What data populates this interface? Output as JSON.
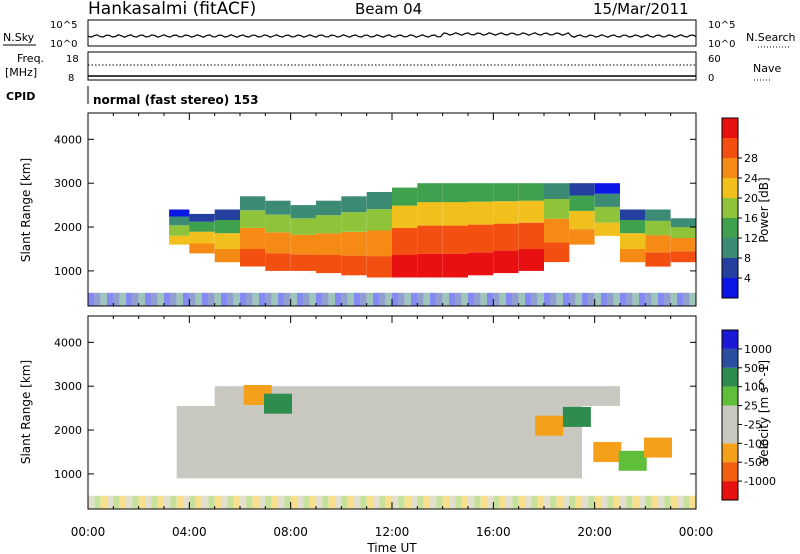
{
  "header": {
    "station": "Hankasalmi (fitACF)",
    "beam": "Beam 04",
    "date": "15/Mar/2011"
  },
  "top_panels": {
    "nsky_label": "N.Sky",
    "nsky_ticks": [
      "10^5",
      "10^0"
    ],
    "nsky_ticks_right": [
      "10^5",
      "10^0"
    ],
    "nsearch_label": "N.Search",
    "freq_label_line1": "Freq.",
    "freq_label_line2": "[MHz]",
    "freq_ticks": [
      "18",
      "8"
    ],
    "nave_ticks": [
      "60",
      "0"
    ],
    "nave_label": "Nave",
    "cpid_label": "CPID",
    "cpid_text": "normal (fast stereo) 153"
  },
  "colors": {
    "power_scale": [
      "#0a16e6",
      "#24409e",
      "#3c8b74",
      "#3fa04e",
      "#8fc43a",
      "#f2c01c",
      "#f58a15",
      "#f24f10",
      "#e81010"
    ],
    "velocity_scale": [
      "#e81010",
      "#f25e10",
      "#f5a01a",
      "#c8c8c0",
      "#c8c8c0",
      "#5fbf3a",
      "#2e8c4f",
      "#2a4f9e",
      "#1a1ad6"
    ],
    "ground_scatter": "#c8c8c0"
  },
  "chart_data": [
    {
      "type": "heatmap",
      "title": "Power",
      "xlabel": "Time UT",
      "ylabel": "Slant Range [km]",
      "x_ticks": [
        "00:00",
        "04:00",
        "08:00",
        "12:00",
        "16:00",
        "20:00",
        "00:00"
      ],
      "y_ticks": [
        "1000",
        "2000",
        "3000",
        "4000"
      ],
      "ylim": [
        200,
        4600
      ],
      "x_range_hours": [
        0,
        24
      ],
      "colorbar_label": "Power [dB]",
      "colorbar_ticks": [
        "4",
        "8",
        "12",
        "16",
        "20",
        "24",
        "28"
      ],
      "regions": [
        {
          "t": 3.2,
          "r0": 1600,
          "r1": 2400,
          "level": 5
        },
        {
          "t": 4.0,
          "r0": 1400,
          "r1": 2300,
          "level": 6
        },
        {
          "t": 5.0,
          "r0": 1200,
          "r1": 2400,
          "level": 6
        },
        {
          "t": 6.0,
          "r0": 1100,
          "r1": 2700,
          "level": 7
        },
        {
          "t": 7.0,
          "r0": 1000,
          "r1": 2600,
          "level": 7
        },
        {
          "t": 8.0,
          "r0": 1000,
          "r1": 2500,
          "level": 7
        },
        {
          "t": 9.0,
          "r0": 950,
          "r1": 2600,
          "level": 7
        },
        {
          "t": 10.0,
          "r0": 900,
          "r1": 2700,
          "level": 7
        },
        {
          "t": 11.0,
          "r0": 850,
          "r1": 2800,
          "level": 7
        },
        {
          "t": 12.0,
          "r0": 850,
          "r1": 2900,
          "level": 8
        },
        {
          "t": 13.0,
          "r0": 850,
          "r1": 3000,
          "level": 8
        },
        {
          "t": 14.0,
          "r0": 850,
          "r1": 3000,
          "level": 8
        },
        {
          "t": 15.0,
          "r0": 900,
          "r1": 3000,
          "level": 8
        },
        {
          "t": 16.0,
          "r0": 950,
          "r1": 3000,
          "level": 8
        },
        {
          "t": 17.0,
          "r0": 1000,
          "r1": 3000,
          "level": 8
        },
        {
          "t": 18.0,
          "r0": 1200,
          "r1": 3000,
          "level": 7
        },
        {
          "t": 19.0,
          "r0": 1600,
          "r1": 3000,
          "level": 6
        },
        {
          "t": 20.0,
          "r0": 1800,
          "r1": 3000,
          "level": 5
        },
        {
          "t": 21.0,
          "r0": 1200,
          "r1": 2400,
          "level": 6
        },
        {
          "t": 22.0,
          "r0": 1100,
          "r1": 2400,
          "level": 7
        },
        {
          "t": 23.0,
          "r0": 1200,
          "r1": 2200,
          "level": 7
        }
      ]
    },
    {
      "type": "heatmap",
      "title": "Velocity",
      "xlabel": "Time UT",
      "ylabel": "Slant Range [km]",
      "x_ticks": [
        "00:00",
        "04:00",
        "08:00",
        "12:00",
        "16:00",
        "20:00",
        "00:00"
      ],
      "y_ticks": [
        "1000",
        "2000",
        "3000",
        "4000"
      ],
      "ylim": [
        200,
        4600
      ],
      "x_range_hours": [
        0,
        24
      ],
      "colorbar_label": "Velocity [m s^-1]",
      "colorbar_ticks": [
        "1000",
        "500",
        "100",
        "25",
        "-25",
        "-100",
        "-500",
        "-1000"
      ],
      "ground_scatter": {
        "t0": 3.5,
        "t1": 19.5,
        "r0": 900,
        "r1": 3000
      },
      "patches": [
        {
          "t": 6.7,
          "r": 2800,
          "value": -300
        },
        {
          "t": 7.5,
          "r": 2600,
          "value": 200
        },
        {
          "t": 18.2,
          "r": 2100,
          "value": -200
        },
        {
          "t": 19.3,
          "r": 2300,
          "value": 150
        },
        {
          "t": 20.5,
          "r": 1500,
          "value": -150
        },
        {
          "t": 21.5,
          "r": 1300,
          "value": 60
        },
        {
          "t": 22.5,
          "r": 1600,
          "value": -300
        }
      ]
    }
  ]
}
